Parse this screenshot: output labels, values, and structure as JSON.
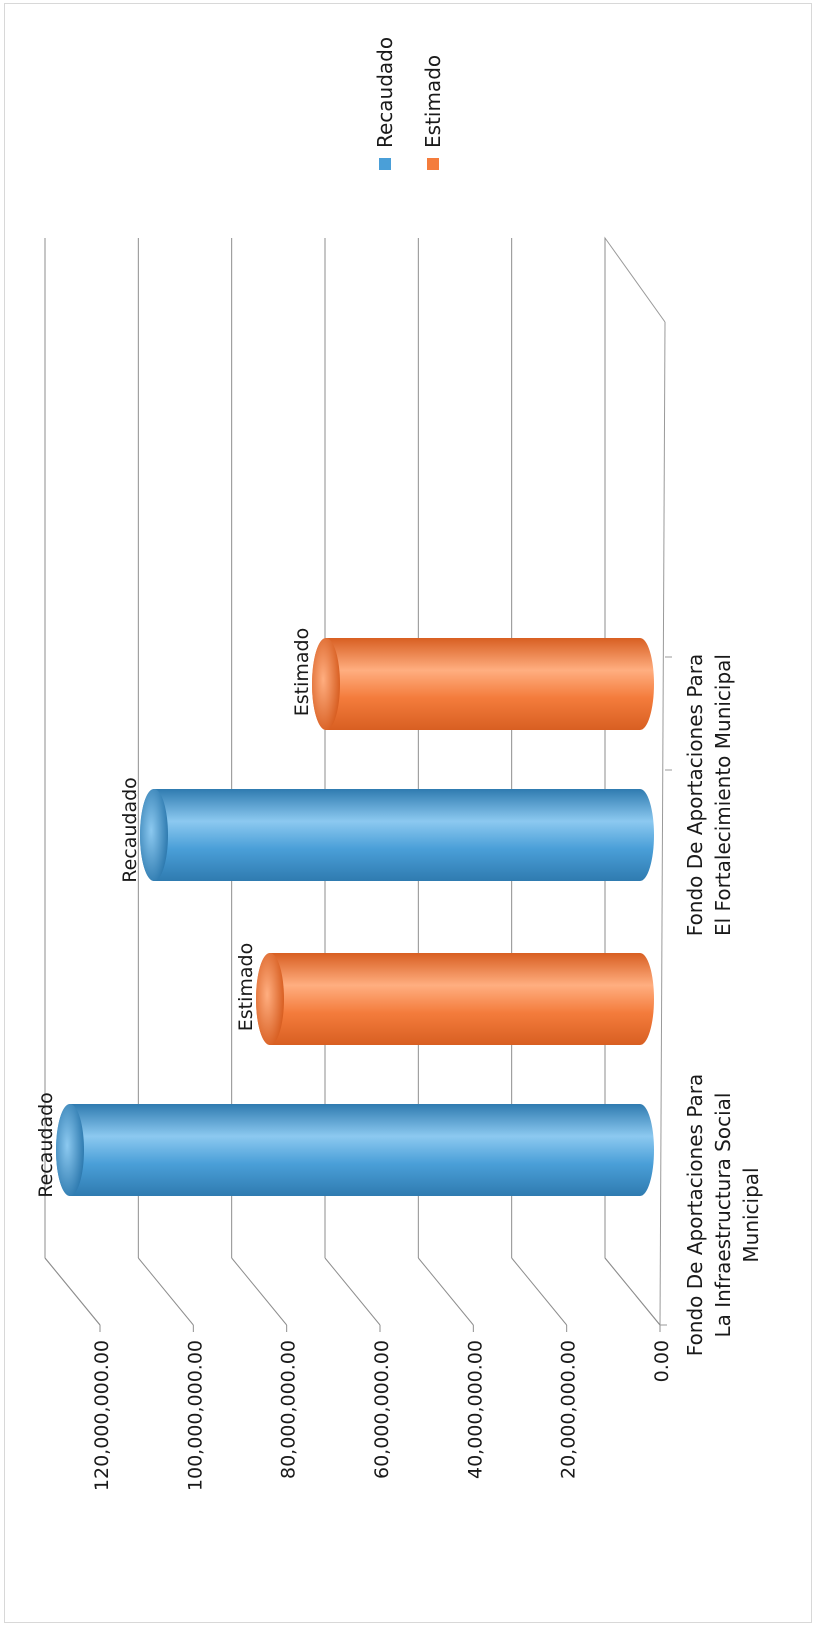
{
  "chart_data": {
    "type": "bar",
    "style": "3d-cylinder",
    "orientation": "horizontal",
    "title": "",
    "xlabel": "",
    "ylabel": "",
    "categories": [
      [
        "Fondo De Aportaciones Para",
        "La Infraestructura Social",
        "Municipal"
      ],
      [
        "Fondo De Aportaciones Para",
        "El Fortalecimiento Municipal"
      ]
    ],
    "series": [
      {
        "name": "Recaudado",
        "color": "#4a9fd8",
        "values": [
          120000000,
          102000000
        ],
        "data_labels": [
          "Recaudado",
          "Recaudado"
        ]
      },
      {
        "name": "Estimado",
        "color": "#f47c3c",
        "values": [
          84000000,
          72000000
        ],
        "data_labels": [
          "Estimado",
          "Estimado"
        ]
      }
    ],
    "value_ticks": [
      "0.00",
      "20,000,000.00",
      "40,000,000.00",
      "60,000,000.00",
      "80,000,000.00",
      "100,000,000.00",
      "120,000,000.00"
    ],
    "value_range": [
      0,
      120000000
    ],
    "grid": true,
    "legend_position": "top-right"
  }
}
